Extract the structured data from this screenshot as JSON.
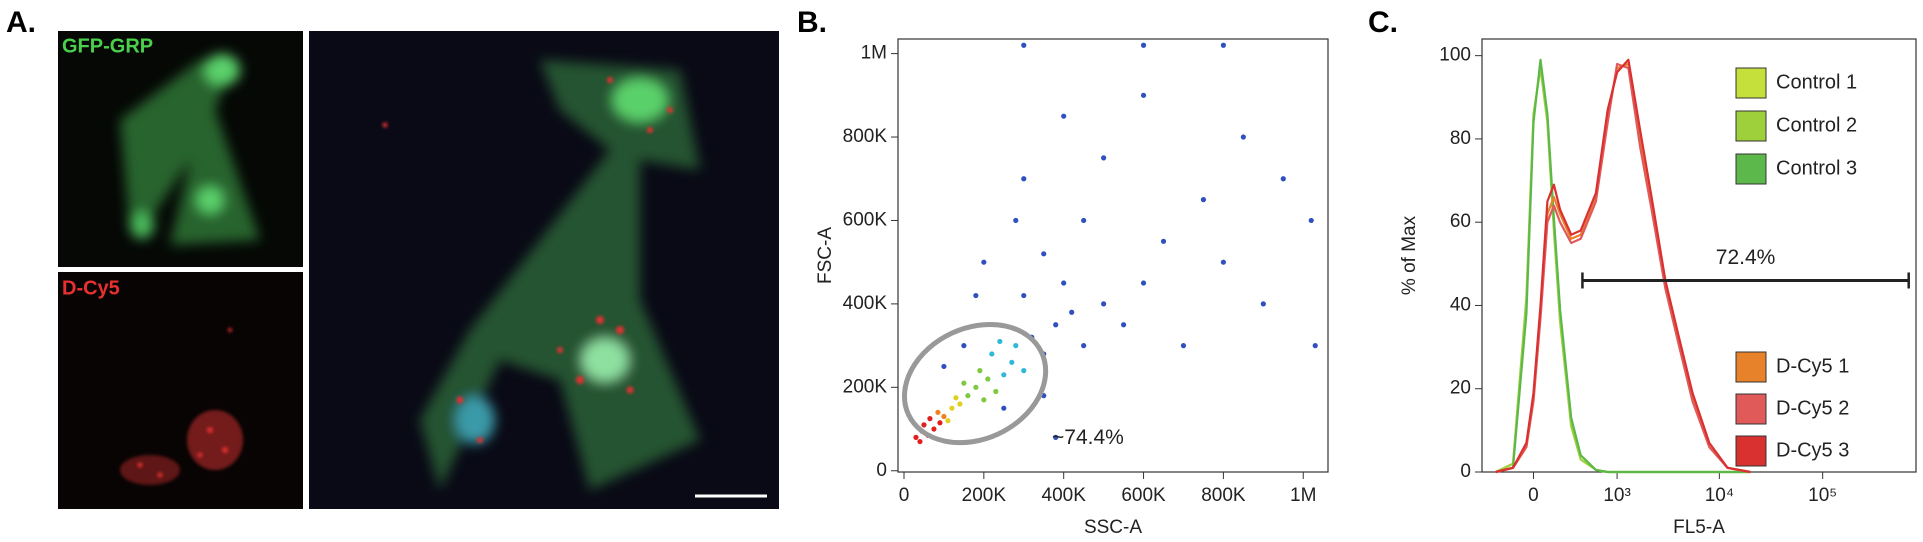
{
  "panel_labels": {
    "a": "A.",
    "b": "B.",
    "c": "C."
  },
  "images": {
    "top_label": "GFP-GRP",
    "bottom_label": "D-Cy5"
  },
  "chart_data": [
    {
      "type": "scatter",
      "xlabel": "SSC-A",
      "ylabel": "FSC-A",
      "x": [
        30000,
        45000,
        60000,
        50000,
        75000,
        40000,
        90000,
        65000,
        100000,
        120000,
        85000,
        110000,
        140000,
        130000,
        160000,
        180000,
        200000,
        150000,
        210000,
        230000,
        190000,
        250000,
        220000,
        270000,
        300000,
        240000,
        280000,
        320000,
        350000,
        380000,
        300000,
        420000,
        450000,
        400000,
        500000,
        350000,
        550000,
        600000,
        280000,
        450000,
        650000,
        700000,
        300000,
        500000,
        750000,
        800000,
        400000,
        600000,
        850000,
        900000,
        950000,
        200000,
        150000,
        100000,
        180000,
        250000,
        350000,
        1020000,
        1030000,
        600000,
        300000,
        800000,
        380000
      ],
      "values": [
        80000,
        95000,
        85000,
        110000,
        100000,
        70000,
        115000,
        125000,
        130000,
        150000,
        140000,
        120000,
        160000,
        175000,
        180000,
        200000,
        170000,
        210000,
        220000,
        190000,
        240000,
        230000,
        280000,
        260000,
        240000,
        310000,
        300000,
        320000,
        280000,
        350000,
        420000,
        380000,
        300000,
        450000,
        400000,
        520000,
        350000,
        450000,
        600000,
        600000,
        550000,
        300000,
        700000,
        750000,
        650000,
        500000,
        850000,
        900000,
        800000,
        400000,
        700000,
        500000,
        300000,
        250000,
        420000,
        150000,
        180000,
        600000,
        300000,
        1020000,
        1020000,
        1020000,
        80000
      ],
      "point_colors": [
        "#e02020",
        "#e02020",
        "#e02020",
        "#e02020",
        "#e02020",
        "#e02020",
        "#e02020",
        "#e02020",
        "#f08020",
        "#e0d020",
        "#f08020",
        "#e0d020",
        "#e0d020",
        "#e0d020",
        "#80c840",
        "#80c840",
        "#80c840",
        "#80c840",
        "#80c840",
        "#80c840",
        "#80c840",
        "#30b8d8",
        "#30b8d8",
        "#30b8d8",
        "#30b8d8",
        "#30b8d8",
        "#30b8d8",
        "#3050c0",
        "#3050c0",
        "#3050c0",
        "#3050c0",
        "#3050c0",
        "#3050c0",
        "#3050c0",
        "#3050c0",
        "#3050c0",
        "#3050c0",
        "#3050c0",
        "#3050c0",
        "#3050c0",
        "#3050c0",
        "#3050c0",
        "#3050c0",
        "#3050c0",
        "#3050c0",
        "#3050c0",
        "#3050c0",
        "#3050c0",
        "#3050c0",
        "#3050c0",
        "#3050c0",
        "#3050c0",
        "#3050c0",
        "#3050c0",
        "#3050c0",
        "#3050c0",
        "#3050c0",
        "#3050c0",
        "#3050c0",
        "#3050c0",
        "#3050c0",
        "#3050c0",
        "#3050c0"
      ],
      "xlim": [
        -15000,
        1062000
      ],
      "ylim": [
        -3000,
        1035000
      ],
      "xticks": [
        0,
        {
          "value": 200000,
          "label": "200K"
        },
        {
          "value": 400000,
          "label": "400K"
        },
        {
          "value": 600000,
          "label": "600K"
        },
        {
          "value": 800000,
          "label": "800K"
        },
        {
          "value": 1000000,
          "label": "1M"
        }
      ],
      "yticks": [
        0,
        {
          "value": 200000,
          "label": "200K"
        },
        {
          "value": 400000,
          "label": "400K"
        },
        {
          "value": 600000,
          "label": "600K"
        },
        {
          "value": 800000,
          "label": "800K"
        },
        {
          "value": 1000000,
          "label": "1M"
        }
      ],
      "gate": {
        "cx": 178000,
        "cy": 209000,
        "rx": 184000,
        "ry": 133000,
        "angle": -25,
        "color": "#999999",
        "label": "~74.4%"
      }
    },
    {
      "type": "line",
      "xlabel": "FL5-A",
      "ylabel": "% of Max",
      "xscale": "biexponential",
      "x": [
        -300,
        -150,
        -50,
        0,
        50,
        100,
        150,
        200,
        300,
        400,
        600,
        800,
        1000,
        1300,
        1700,
        2200,
        3000,
        4000,
        5500,
        8000,
        12000,
        20000
      ],
      "xlim": [
        -450,
        800000
      ],
      "ylim": [
        0,
        104
      ],
      "xticks": [
        0,
        {
          "value": 1000,
          "label": "10³"
        },
        {
          "value": 10000,
          "label": "10⁴"
        },
        {
          "value": 100000,
          "label": "10⁵"
        }
      ],
      "yticks": [
        0,
        20,
        40,
        60,
        80,
        100
      ],
      "legend": "right",
      "series": [
        {
          "name": "Control 1",
          "color": "#c5e03a",
          "values": [
            0,
            2,
            40,
            85,
            98,
            85,
            60,
            38,
            12,
            4,
            0.5,
            0,
            0,
            0,
            0,
            0,
            0,
            0,
            0,
            0,
            0,
            0
          ]
        },
        {
          "name": "Control 2",
          "color": "#9dd03a",
          "values": [
            0,
            2,
            42,
            86,
            97,
            84,
            58,
            36,
            11,
            3,
            0.5,
            0,
            0,
            0,
            0,
            0,
            0,
            0,
            0,
            0,
            0,
            0
          ]
        },
        {
          "name": "Control 3",
          "color": "#5cb84a",
          "values": [
            0,
            1,
            38,
            84,
            99,
            86,
            61,
            39,
            13,
            4,
            0.5,
            0,
            0,
            0,
            0,
            0,
            0,
            0,
            0,
            0,
            0,
            0
          ]
        },
        {
          "name": "D-Cy5 1",
          "color": "#e8822a",
          "values": [
            0,
            1,
            6,
            18,
            38,
            62,
            66,
            62,
            56,
            57,
            66,
            86,
            97,
            98,
            80,
            65,
            45,
            32,
            18,
            6,
            1,
            0
          ]
        },
        {
          "name": "D-Cy5 2",
          "color": "#e05a5a",
          "values": [
            0,
            1,
            6,
            17,
            37,
            60,
            64,
            60,
            55,
            56,
            65,
            84,
            98,
            97,
            78,
            63,
            44,
            31,
            17,
            6,
            1,
            0
          ]
        },
        {
          "name": "D-Cy5 3",
          "color": "#d93030",
          "values": [
            0,
            1,
            7,
            19,
            40,
            65,
            69,
            63,
            57,
            58,
            67,
            87,
            96,
            99,
            82,
            66,
            46,
            33,
            19,
            7,
            1,
            0
          ]
        }
      ],
      "gate": {
        "range": [
          420,
          680000
        ],
        "level": 46,
        "label": "72.4%",
        "color": "#222222"
      }
    }
  ]
}
